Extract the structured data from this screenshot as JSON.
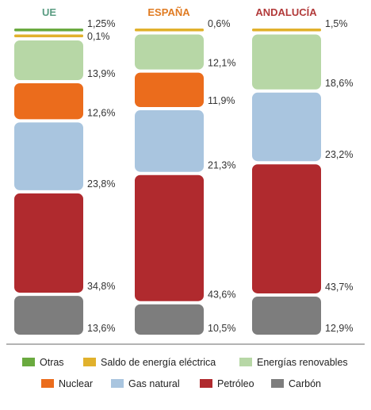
{
  "chart_data": {
    "type": "bar",
    "stacked": true,
    "categories": [
      "UE",
      "ESPAÑA",
      "ANDALUCÍA"
    ],
    "category_colors": [
      "#5a9c82",
      "#e07b22",
      "#b23a3a"
    ],
    "series": [
      {
        "name": "Otras",
        "color": "#6aaa3f",
        "values": [
          1.25,
          0,
          0
        ],
        "labels": [
          "1,25%",
          "",
          ""
        ]
      },
      {
        "name": "Saldo de energía eléctrica",
        "color": "#e1b12c",
        "values": [
          0.1,
          0.6,
          1.5
        ],
        "labels": [
          "0,1%",
          "0,6%",
          "1,5%"
        ]
      },
      {
        "name": "Energías renovables",
        "color": "#b7d7a6",
        "values": [
          13.9,
          12.1,
          18.6
        ],
        "labels": [
          "13,9%",
          "12,1%",
          "18,6%"
        ]
      },
      {
        "name": "Nuclear",
        "color": "#eb6c1c",
        "values": [
          12.6,
          11.9,
          0
        ],
        "labels": [
          "12,6%",
          "11,9%",
          ""
        ]
      },
      {
        "name": "Gas natural",
        "color": "#a9c5df",
        "values": [
          23.8,
          21.3,
          23.2
        ],
        "labels": [
          "23,8%",
          "21,3%",
          "23,2%"
        ]
      },
      {
        "name": "Petróleo",
        "color": "#b02a2e",
        "values": [
          34.8,
          43.6,
          43.7
        ],
        "labels": [
          "34,8%",
          "43,6%",
          "43,7%"
        ]
      },
      {
        "name": "Carbón",
        "color": "#7d7d7d",
        "values": [
          13.6,
          10.5,
          12.9
        ],
        "labels": [
          "13,6%",
          "10,5%",
          "12,9%"
        ]
      }
    ],
    "ylim": [
      0,
      100
    ],
    "legend_position": "bottom",
    "grid": false
  }
}
